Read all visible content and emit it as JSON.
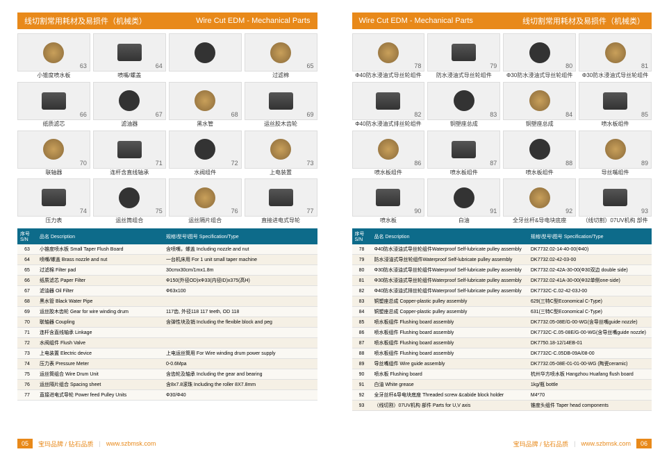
{
  "header_left": {
    "cn": "线切割常用耗材及易损件（机械类）",
    "en": "Wire Cut EDM - Mechanical Parts"
  },
  "header_right": {
    "en": "Wire Cut EDM - Mechanical Parts",
    "cn": "线切割常用耗材及易损件（机械类）"
  },
  "left_items": [
    {
      "n": "63",
      "cap": "小锥度喷水板"
    },
    {
      "n": "64",
      "cap": "喷嘴/螺盖"
    },
    {
      "n": "",
      "cap": ""
    },
    {
      "n": "65",
      "cap": "过滤棉"
    },
    {
      "n": "66",
      "cap": "纸质滤芯"
    },
    {
      "n": "67",
      "cap": "滤油器"
    },
    {
      "n": "68",
      "cap": "黑水管"
    },
    {
      "n": "69",
      "cap": "运丝胶木齿轮"
    },
    {
      "n": "70",
      "cap": "联轴器"
    },
    {
      "n": "71",
      "cap": "连杆含直线轴承"
    },
    {
      "n": "72",
      "cap": "水阀组件"
    },
    {
      "n": "73",
      "cap": "上电装置"
    },
    {
      "n": "74",
      "cap": "压力表"
    },
    {
      "n": "75",
      "cap": "运丝筒组合"
    },
    {
      "n": "76",
      "cap": "运丝隔片组合"
    },
    {
      "n": "77",
      "cap": "直接进电式导轮"
    }
  ],
  "right_items": [
    {
      "n": "78",
      "cap": "Φ40防水浸油式导丝轮组件"
    },
    {
      "n": "79",
      "cap": "防水浸油式导丝轮组件"
    },
    {
      "n": "80",
      "cap": "Φ30防水浸油式导丝轮组件"
    },
    {
      "n": "81",
      "cap": "Φ30防水浸油式导丝轮组件"
    },
    {
      "n": "82",
      "cap": "Φ40防水浸油式排丝轮组件"
    },
    {
      "n": "83",
      "cap": "铜塑座总成"
    },
    {
      "n": "84",
      "cap": "铜塑座总成"
    },
    {
      "n": "85",
      "cap": "喷水板组件"
    },
    {
      "n": "86",
      "cap": "喷水板组件"
    },
    {
      "n": "87",
      "cap": "喷水板组件"
    },
    {
      "n": "88",
      "cap": "喷水板组件"
    },
    {
      "n": "89",
      "cap": "导丝嘴组件"
    },
    {
      "n": "90",
      "cap": "喷水板"
    },
    {
      "n": "91",
      "cap": "白油"
    },
    {
      "n": "92",
      "cap": "全牙丝杆&导电块底座"
    },
    {
      "n": "93",
      "cap": "（线切割）07UV机构 部件"
    }
  ],
  "th": {
    "sn": "序号S/N",
    "desc": "品名 Description",
    "spec": "规格\\型号\\图号 Specification/Type"
  },
  "left_rows": [
    {
      "sn": "63",
      "d": "小锥度喷水板  Small Taper Flush Board",
      "s": "含喷嘴，螺盖  Including nozzle and nut"
    },
    {
      "sn": "64",
      "d": "喷嘴/螺盖  Brass nozzle and nut",
      "s": "一台机床用  For 1 unit small taper machine"
    },
    {
      "sn": "65",
      "d": "过滤棉  Filter pad",
      "s": "30cmx30cm/1mx1.8m"
    },
    {
      "sn": "66",
      "d": "纸质滤芯  Paper Filter",
      "s": "Φ150(外径OD)xΦ33(内径ID)x375(高H)"
    },
    {
      "sn": "67",
      "d": "滤油器  Oil Filter",
      "s": "Φ63x100"
    },
    {
      "sn": "68",
      "d": "黑水管  Black Water Pipe",
      "s": ""
    },
    {
      "sn": "69",
      "d": "运丝胶木齿轮  Gear for wire winding drum",
      "s": "117齿, 外径118  117 teeth, OD 118"
    },
    {
      "sn": "70",
      "d": "联轴器  Coupling",
      "s": "含弹性块及销  Including the flexible block and peg"
    },
    {
      "sn": "71",
      "d": "连杆含直线轴承  Linkage",
      "s": ""
    },
    {
      "sn": "72",
      "d": "水阀组件  Flush Valve",
      "s": ""
    },
    {
      "sn": "73",
      "d": "上电装置  Electric device",
      "s": "上电运丝筒用  For Wire winding drum power supply"
    },
    {
      "sn": "74",
      "d": "压力表  Pressure Meter",
      "s": "0-0.6Mpa"
    },
    {
      "sn": "75",
      "d": "运丝筒组合  Wire Drum Unit",
      "s": "含齿轮及轴承  Including the gear and bearing"
    },
    {
      "sn": "76",
      "d": "运丝隔片组合  Spacing sheet",
      "s": "含8x7.8滚珠  Including the roller 8X7.8mm"
    },
    {
      "sn": "77",
      "d": "直接进电式导轮  Power feed Pulley Units",
      "s": "Φ30/Φ40"
    }
  ],
  "right_rows": [
    {
      "sn": "78",
      "d": "Φ40防水浸油式导丝轮组件Waterproof Self-lubricate pulley assembly",
      "s": "DK7732.02-14-40-00(Φ40)"
    },
    {
      "sn": "79",
      "d": "防水浸油式导丝轮组件Waterproof Self-lubricate pulley assembly",
      "s": "DK7732.02-42-03-00"
    },
    {
      "sn": "80",
      "d": "Φ30防水浸油式导丝轮组件Waterproof Self-lubricate pulley assembly",
      "s": "DK7732.02-42A-30-00(Φ30双边 double side)"
    },
    {
      "sn": "81",
      "d": "Φ30防水浸油式导丝轮组件Waterproof Self-lubricate pulley assembly",
      "s": "DK7732.02-41A-30-00(Φ32单侧one-side)"
    },
    {
      "sn": "82",
      "d": "Φ40防水浸油式排丝轮组件Waterproof Self-lubricate pulley assembly",
      "s": "DK7732C-C.02-42-03J-00"
    },
    {
      "sn": "83",
      "d": "铜塑座总成  Copper-plastic pulley assembly",
      "s": "629(三特C型Economical C-Type)"
    },
    {
      "sn": "84",
      "d": "铜塑座总成  Copper-plastic pulley assembly",
      "s": "631(三特C型Economical C-Type)"
    },
    {
      "sn": "85",
      "d": "喷水板组件  Flushing board  assembly",
      "s": "DK7732.05-08E/G-00-WG(含导丝嘴guide nozzle)"
    },
    {
      "sn": "86",
      "d": "喷水板组件  Flushing board  assembly",
      "s": "DK7732C-C.05-08E/G-00-WG(含导丝嘴guide nozzle)"
    },
    {
      "sn": "87",
      "d": "喷水板组件  Flushing board  assembly",
      "s": "DK7750.18-12/14EB-01"
    },
    {
      "sn": "88",
      "d": "喷水板组件  Flushing board  assembly",
      "s": "DK7732C-C.05DB-09A/08-00"
    },
    {
      "sn": "89",
      "d": "导丝嘴组件  Wire guide assembly",
      "s": "DK7732.05-08E-01-01-00-WG (陶瓷ceramic)"
    },
    {
      "sn": "90",
      "d": "喷水板  Flushing board",
      "s": "杭州华方喷水板 Hangzhou Huafang flush board"
    },
    {
      "sn": "91",
      "d": "白油  White grease",
      "s": "1kg/瓶 bottle"
    },
    {
      "sn": "92",
      "d": "全牙丝杆&导电块底座  Threaded screw &cabide block holder",
      "s": "M4*70"
    },
    {
      "sn": "93",
      "d": "（线切割）07UV机构 部件  Parts for U,V axis",
      "s": "锥度头组件  Taper head components"
    }
  ],
  "footer": {
    "brand": "宝玛品牌 / 钻石品质",
    "url": "www.szbmsk.com",
    "p_left": "05",
    "p_right": "06"
  },
  "colors": {
    "orange": "#e8891a",
    "teal": "#0d6b8a",
    "row_alt": "#f5f0e5"
  }
}
